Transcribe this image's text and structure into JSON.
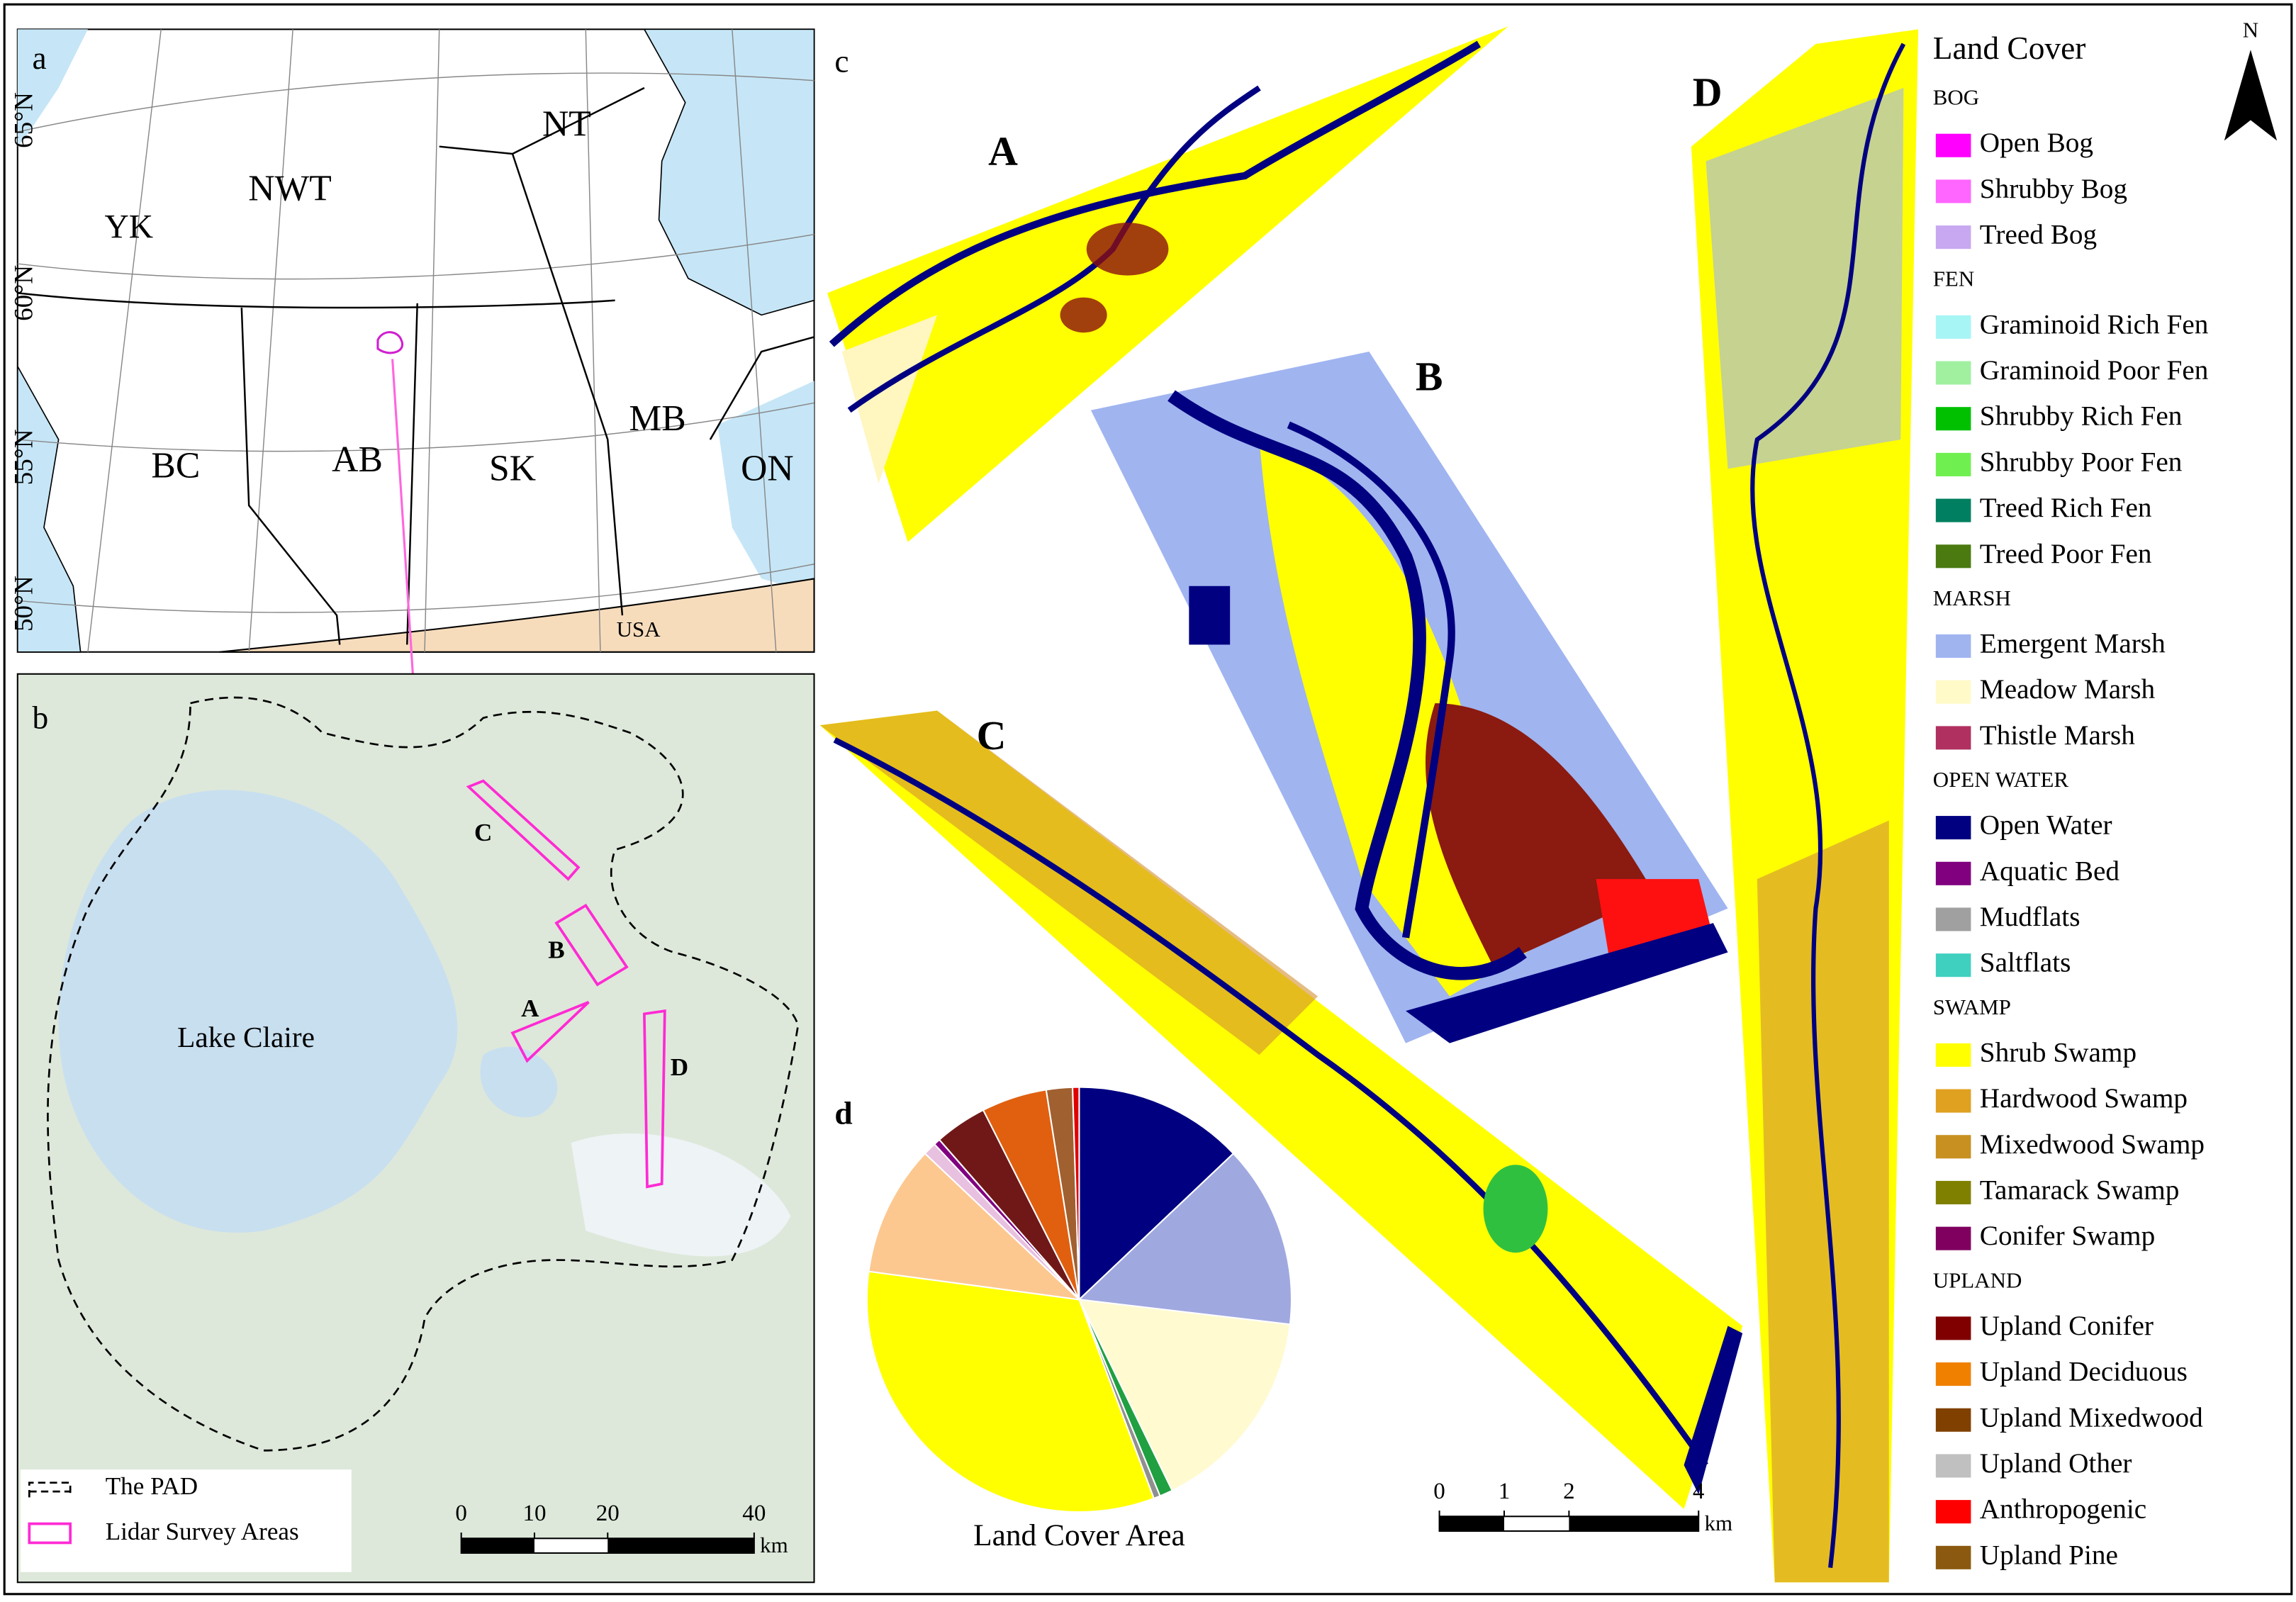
{
  "panel_labels": [
    "a",
    "b",
    "c",
    "d"
  ],
  "panel_a": {
    "lat_labels": [
      "65°N",
      "60°N",
      "55°N",
      "50°N"
    ],
    "regions": [
      "YK",
      "NWT",
      "NT",
      "BC",
      "AB",
      "SK",
      "MB",
      "ON",
      "USA"
    ]
  },
  "panel_b": {
    "place": "Lake Claire",
    "areas": [
      "C",
      "B",
      "A",
      "D"
    ],
    "legend": [
      "The PAD",
      "Lidar Survey Areas"
    ],
    "scale": {
      "ticks": [
        0,
        10,
        20,
        40
      ],
      "unit": "km"
    }
  },
  "panel_c": {
    "areas": [
      "A",
      "B",
      "C",
      "D"
    ],
    "scale": {
      "ticks": [
        0,
        1,
        2,
        4
      ],
      "unit": "km"
    }
  },
  "north": "N",
  "legend": {
    "title": "Land Cover",
    "groups": [
      {
        "name": "BOG",
        "items": [
          {
            "label": "Open Bog",
            "color": "#ff00ff"
          },
          {
            "label": "Shrubby Bog",
            "color": "#ff66ff"
          },
          {
            "label": "Treed Bog",
            "color": "#c8a8f0"
          }
        ]
      },
      {
        "name": "FEN",
        "items": [
          {
            "label": "Graminoid Rich Fen",
            "color": "#a8f5f5"
          },
          {
            "label": "Graminoid Poor Fen",
            "color": "#a0f0a0"
          },
          {
            "label": "Shrubby Rich Fen",
            "color": "#00c000"
          },
          {
            "label": "Shrubby Poor Fen",
            "color": "#70f050"
          },
          {
            "label": "Treed Rich Fen",
            "color": "#008060"
          },
          {
            "label": "Treed Poor Fen",
            "color": "#4a7a10"
          }
        ]
      },
      {
        "name": "MARSH",
        "items": [
          {
            "label": "Emergent Marsh",
            "color": "#a0b4f0"
          },
          {
            "label": "Meadow Marsh",
            "color": "#fffac8"
          },
          {
            "label": "Thistle Marsh",
            "color": "#b03060"
          }
        ]
      },
      {
        "name": "OPEN WATER",
        "items": [
          {
            "label": "Open Water",
            "color": "#000080"
          },
          {
            "label": "Aquatic Bed",
            "color": "#800080"
          },
          {
            "label": "Mudflats",
            "color": "#a0a0a0"
          },
          {
            "label": "Saltflats",
            "color": "#40d0c0"
          }
        ]
      },
      {
        "name": "SWAMP",
        "items": [
          {
            "label": "Shrub Swamp",
            "color": "#ffff00"
          },
          {
            "label": "Hardwood Swamp",
            "color": "#e0a020"
          },
          {
            "label": "Mixedwood Swamp",
            "color": "#c89020"
          },
          {
            "label": "Tamarack Swamp",
            "color": "#808000"
          },
          {
            "label": "Conifer Swamp",
            "color": "#800060"
          }
        ]
      },
      {
        "name": "UPLAND",
        "items": [
          {
            "label": "Upland Conifer",
            "color": "#800000"
          },
          {
            "label": "Upland Deciduous",
            "color": "#f08000"
          },
          {
            "label": "Upland Mixedwood",
            "color": "#804000"
          },
          {
            "label": "Upland Other",
            "color": "#c0c0c0"
          },
          {
            "label": "Anthropogenic",
            "color": "#ff0000"
          },
          {
            "label": "Upland Pine",
            "color": "#8b5a10"
          }
        ]
      }
    ]
  },
  "chart_data": {
    "type": "pie",
    "title": "Land Cover Area",
    "values": [
      13,
      14,
      16,
      1,
      0.5,
      33,
      10,
      1,
      0.5,
      4,
      5,
      2,
      0.5
    ],
    "colors": [
      "#000080",
      "#a0a8e0",
      "#fffad0",
      "#20a040",
      "#909090",
      "#ffff00",
      "#fcc890",
      "#e8c0e0",
      "#800080",
      "#701818",
      "#e06010",
      "#a06030",
      "#e00000"
    ]
  }
}
